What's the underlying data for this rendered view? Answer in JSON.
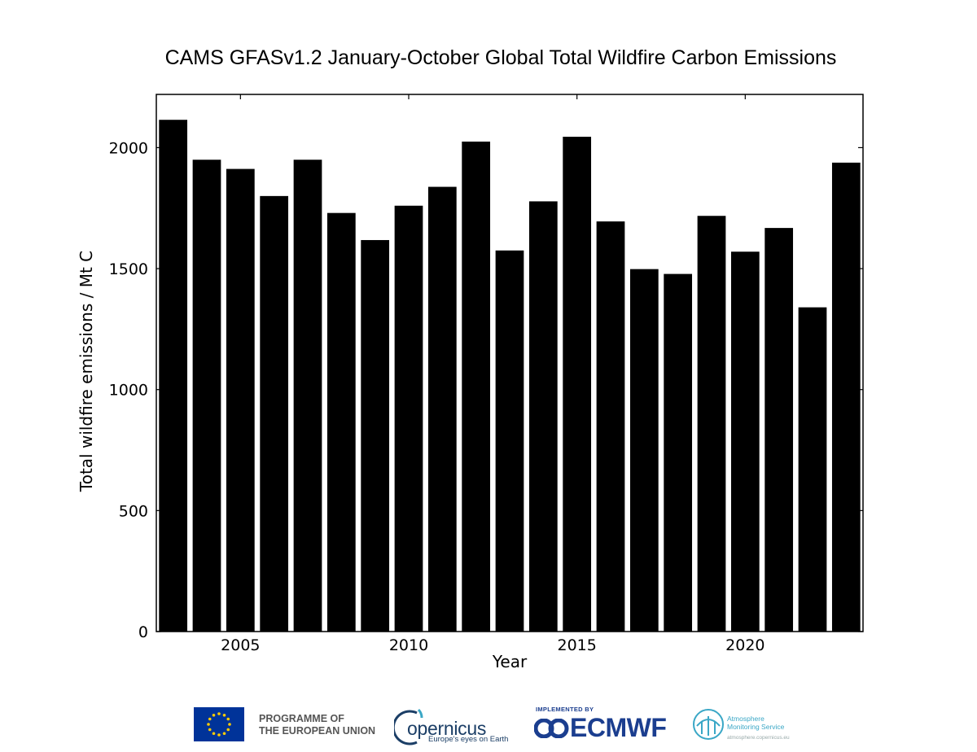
{
  "chart_data": {
    "type": "bar",
    "title": "CAMS GFASv1.2 January-October Global Total Wildfire Carbon Emissions",
    "xlabel": "Year",
    "ylabel": "Total wildfire emissions / Mt C",
    "categories": [
      2003,
      2004,
      2005,
      2006,
      2007,
      2008,
      2009,
      2010,
      2011,
      2012,
      2013,
      2014,
      2015,
      2016,
      2017,
      2018,
      2019,
      2020,
      2021,
      2022,
      2023
    ],
    "values": [
      2115,
      1950,
      1912,
      1800,
      1950,
      1730,
      1618,
      1760,
      1838,
      2025,
      1575,
      1778,
      2045,
      1695,
      1498,
      1478,
      1718,
      1570,
      1668,
      1340,
      1938
    ],
    "xticks": [
      2005,
      2010,
      2015,
      2020
    ],
    "yticks": [
      0,
      500,
      1000,
      1500,
      2000
    ],
    "xlim": [
      2002.5,
      2023.5
    ],
    "ylim": [
      0,
      2220
    ],
    "bar_color": "#000000",
    "grid": false
  },
  "footer": {
    "eu_line1": "PROGRAMME OF",
    "eu_line2": "THE EUROPEAN UNION",
    "copernicus_word": "opernicus",
    "copernicus_tagline": "Europe's eyes on Earth",
    "ecmwf_implemented": "IMPLEMENTED BY",
    "ecmwf_word": "ECMWF",
    "cams_line1": "Atmosphere",
    "cams_line2": "Monitoring Service",
    "cams_url": "atmosphere.copernicus.eu"
  }
}
